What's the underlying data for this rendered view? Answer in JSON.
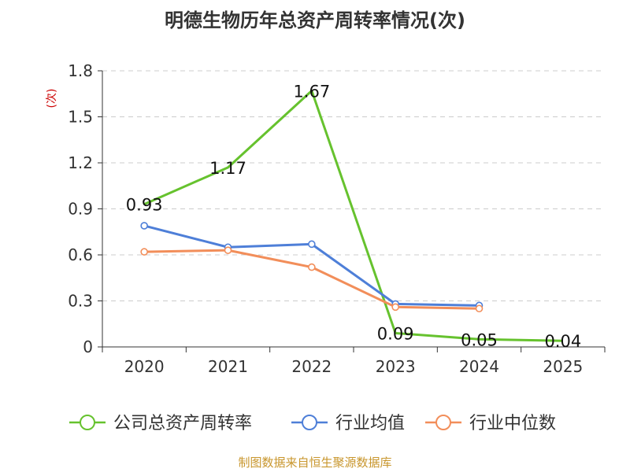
{
  "chart_data": {
    "type": "line",
    "title": "明德生物历年总资产周转率情况(次)",
    "ylabel": "(次)",
    "xlabel": "",
    "categories": [
      "2020",
      "2021",
      "2022",
      "2023",
      "2024",
      "2025"
    ],
    "ylim": [
      0,
      1.8
    ],
    "yticks": [
      "0",
      "0.3",
      "0.6",
      "0.9",
      "1.2",
      "1.5",
      "1.8"
    ],
    "grid": true,
    "legend_position": "bottom",
    "series": [
      {
        "name": "公司总资产周转率",
        "color": "#66c22e",
        "values": [
          0.93,
          1.17,
          1.67,
          0.09,
          0.05,
          0.04
        ],
        "labels": [
          "0.93",
          "1.17",
          "1.67",
          "0.09",
          "0.05",
          "0.04"
        ],
        "show_labels": true,
        "markers": false
      },
      {
        "name": "行业均值",
        "color": "#4e7fd8",
        "values": [
          0.79,
          0.65,
          0.67,
          0.28,
          0.27,
          null
        ],
        "show_labels": false,
        "markers": true
      },
      {
        "name": "行业中位数",
        "color": "#f28e5a",
        "values": [
          0.62,
          0.63,
          0.52,
          0.26,
          0.25,
          null
        ],
        "show_labels": false,
        "markers": true
      }
    ]
  },
  "colors": {
    "axis": "#333333",
    "grid": "#cccccc",
    "ylabel": "#cc0000",
    "source": "#c8962d"
  },
  "source_text": "制图数据来自恒生聚源数据库"
}
